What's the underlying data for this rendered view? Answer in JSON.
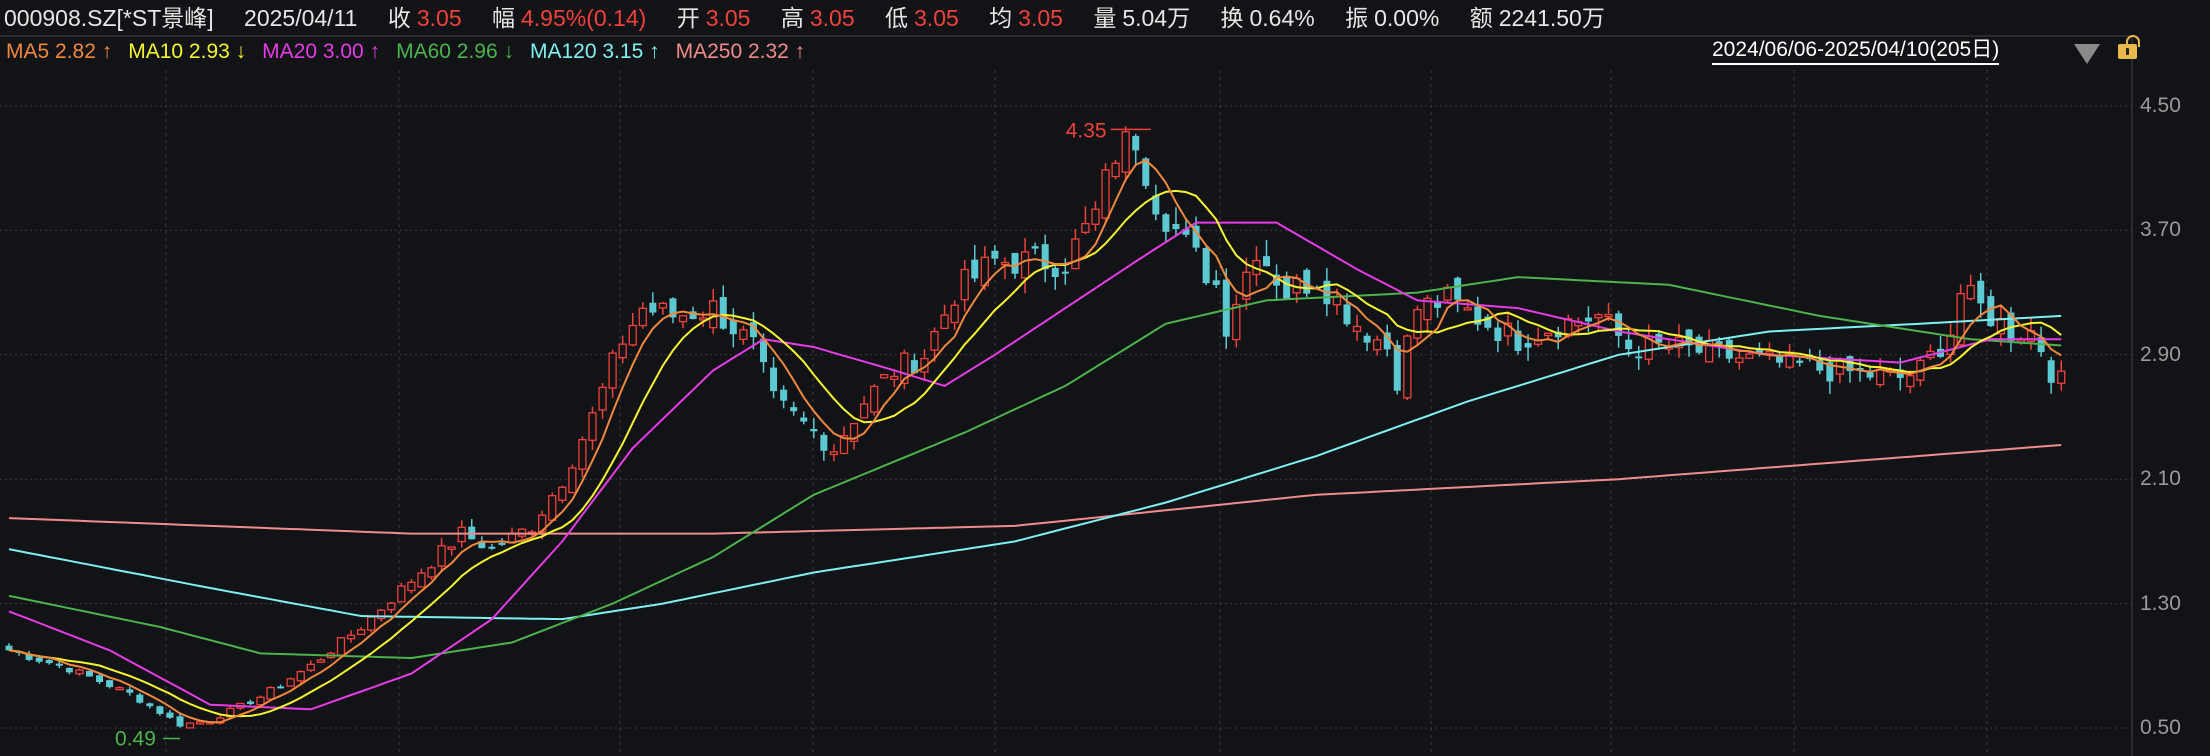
{
  "header": {
    "symbol": "000908.SZ[*ST景峰]",
    "date": "2025/04/11",
    "close_label": "收",
    "close": "3.05",
    "change_label": "幅",
    "change": "4.95%(0.14)",
    "open_label": "开",
    "open": "3.05",
    "high_label": "高",
    "high": "3.05",
    "low_label": "低",
    "low": "3.05",
    "avg_label": "均",
    "avg": "3.05",
    "volume_label": "量",
    "volume": "5.04万",
    "turnover_label": "换",
    "turnover": "0.64%",
    "amplitude_label": "振",
    "amplitude": "0.00%",
    "amount_label": "额",
    "amount": "2241.50万"
  },
  "ma_legend": [
    {
      "label": "MA5 2.82",
      "arrow": "↑",
      "color": "#f0883e"
    },
    {
      "label": "MA10 2.93",
      "arrow": "↓",
      "color": "#f5f532"
    },
    {
      "label": "MA20 3.00",
      "arrow": "↑",
      "color": "#e63ce6"
    },
    {
      "label": "MA60 2.96",
      "arrow": "↓",
      "color": "#4cb34c"
    },
    {
      "label": "MA120 3.15",
      "arrow": "↑",
      "color": "#7ff0f0"
    },
    {
      "label": "MA250 2.32",
      "arrow": "↑",
      "color": "#f08c8c"
    }
  ],
  "range_selector": {
    "label": "2024/06/06-2025/04/10(205日)",
    "dropdown_icon": "triangle-down-icon",
    "lock_icon": "unlock-icon"
  },
  "chart_data": {
    "type": "candlestick",
    "days": 205,
    "ylim": [
      0.5,
      4.5
    ],
    "y_ticks": [
      "4.50",
      "3.70",
      "2.90",
      "2.10",
      "1.30",
      "0.50"
    ],
    "grid": true,
    "up_color": "#f0413b",
    "down_color": "#5cc8d2",
    "annotations": {
      "max": "4.35",
      "min": "0.49"
    },
    "close_keypoints": [
      [
        0,
        1.0
      ],
      [
        6,
        0.88
      ],
      [
        12,
        0.72
      ],
      [
        17,
        0.52
      ],
      [
        20,
        0.55
      ],
      [
        25,
        0.7
      ],
      [
        30,
        0.9
      ],
      [
        35,
        1.15
      ],
      [
        40,
        1.45
      ],
      [
        45,
        1.75
      ],
      [
        48,
        1.65
      ],
      [
        52,
        1.8
      ],
      [
        55,
        2.1
      ],
      [
        58,
        2.5
      ],
      [
        61,
        3.0
      ],
      [
        63,
        3.2
      ],
      [
        66,
        3.15
      ],
      [
        70,
        3.2
      ],
      [
        74,
        2.95
      ],
      [
        76,
        2.6
      ],
      [
        80,
        2.4
      ],
      [
        82,
        2.3
      ],
      [
        85,
        2.6
      ],
      [
        88,
        2.8
      ],
      [
        91,
        2.9
      ],
      [
        94,
        3.3
      ],
      [
        98,
        3.5
      ],
      [
        102,
        3.5
      ],
      [
        105,
        3.5
      ],
      [
        108,
        3.8
      ],
      [
        110,
        4.2
      ],
      [
        112,
        4.3
      ],
      [
        114,
        3.9
      ],
      [
        117,
        3.6
      ],
      [
        120,
        3.35
      ],
      [
        121,
        3.1
      ],
      [
        124,
        3.6
      ],
      [
        127,
        3.3
      ],
      [
        130,
        3.4
      ],
      [
        134,
        3.1
      ],
      [
        137,
        2.95
      ],
      [
        138,
        2.75
      ],
      [
        140,
        3.2
      ],
      [
        143,
        3.25
      ],
      [
        147,
        3.1
      ],
      [
        150,
        3.0
      ],
      [
        154,
        3.1
      ],
      [
        158,
        3.15
      ],
      [
        161,
        2.95
      ],
      [
        165,
        2.95
      ],
      [
        170,
        2.9
      ],
      [
        175,
        2.85
      ],
      [
        181,
        2.8
      ],
      [
        188,
        2.75
      ],
      [
        190,
        2.8
      ],
      [
        193,
        3.05
      ],
      [
        194,
        3.3
      ],
      [
        196,
        3.2
      ],
      [
        199,
        3.05
      ],
      [
        201,
        3.05
      ],
      [
        202,
        2.95
      ],
      [
        203,
        2.8
      ],
      [
        204,
        2.72
      ]
    ],
    "ma_keypoints": {
      "MA20": [
        [
          0,
          1.25
        ],
        [
          10,
          1.0
        ],
        [
          20,
          0.65
        ],
        [
          30,
          0.62
        ],
        [
          40,
          0.85
        ],
        [
          48,
          1.2
        ],
        [
          55,
          1.7
        ],
        [
          62,
          2.3
        ],
        [
          70,
          2.8
        ],
        [
          75,
          3.0
        ],
        [
          80,
          2.95
        ],
        [
          88,
          2.8
        ],
        [
          93,
          2.7
        ],
        [
          98,
          2.9
        ],
        [
          105,
          3.2
        ],
        [
          112,
          3.5
        ],
        [
          118,
          3.75
        ],
        [
          126,
          3.75
        ],
        [
          134,
          3.45
        ],
        [
          140,
          3.25
        ],
        [
          150,
          3.2
        ],
        [
          160,
          3.05
        ],
        [
          175,
          2.9
        ],
        [
          188,
          2.85
        ],
        [
          197,
          3.0
        ],
        [
          204,
          3.0
        ]
      ],
      "MA60": [
        [
          0,
          1.35
        ],
        [
          15,
          1.15
        ],
        [
          25,
          0.98
        ],
        [
          40,
          0.95
        ],
        [
          50,
          1.05
        ],
        [
          60,
          1.3
        ],
        [
          70,
          1.6
        ],
        [
          80,
          2.0
        ],
        [
          95,
          2.4
        ],
        [
          105,
          2.7
        ],
        [
          115,
          3.1
        ],
        [
          125,
          3.25
        ],
        [
          140,
          3.3
        ],
        [
          150,
          3.4
        ],
        [
          165,
          3.35
        ],
        [
          180,
          3.15
        ],
        [
          195,
          3.0
        ],
        [
          204,
          2.96
        ]
      ],
      "MA120": [
        [
          0,
          1.65
        ],
        [
          20,
          1.4
        ],
        [
          35,
          1.22
        ],
        [
          55,
          1.2
        ],
        [
          65,
          1.3
        ],
        [
          80,
          1.5
        ],
        [
          100,
          1.7
        ],
        [
          115,
          1.95
        ],
        [
          130,
          2.25
        ],
        [
          145,
          2.6
        ],
        [
          160,
          2.9
        ],
        [
          175,
          3.05
        ],
        [
          190,
          3.1
        ],
        [
          204,
          3.15
        ]
      ],
      "MA250": [
        [
          0,
          1.85
        ],
        [
          40,
          1.75
        ],
        [
          70,
          1.75
        ],
        [
          100,
          1.8
        ],
        [
          130,
          2.0
        ],
        [
          160,
          2.1
        ],
        [
          190,
          2.25
        ],
        [
          204,
          2.32
        ]
      ]
    }
  }
}
